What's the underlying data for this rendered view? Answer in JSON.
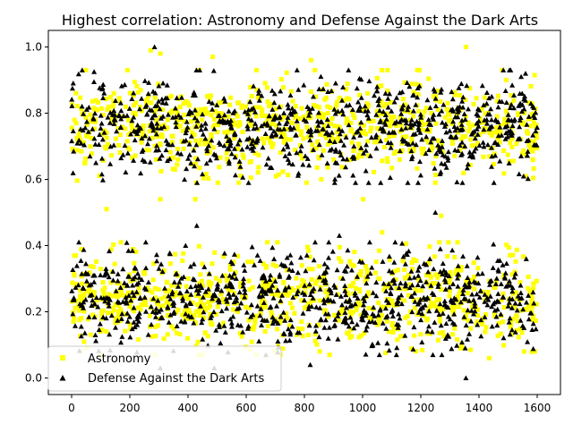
{
  "chart_data": {
    "type": "scatter",
    "title": "Highest correlation: Astronomy and Defense Against the Dark Arts",
    "xlabel": "",
    "ylabel": "",
    "xlim": [
      -80,
      1680
    ],
    "ylim": [
      -0.05,
      1.05
    ],
    "x_ticks": [
      0,
      200,
      400,
      600,
      800,
      1000,
      1200,
      1400,
      1600
    ],
    "y_ticks": [
      0.0,
      0.2,
      0.4,
      0.6,
      0.8,
      1.0
    ],
    "grid": false,
    "legend_position": "lower-left",
    "series": [
      {
        "name": "Astronomy",
        "marker": "square",
        "color": "#ffff00",
        "n_points": 1600,
        "clusters": [
          {
            "x_range": [
              0,
              1600
            ],
            "y_center": 0.76,
            "y_spread": 0.07,
            "share": 0.5
          },
          {
            "x_range": [
              0,
              1600
            ],
            "y_center": 0.24,
            "y_spread": 0.07,
            "share": 0.5
          }
        ],
        "notable_points": [
          {
            "x": 272,
            "y": 0.99
          },
          {
            "x": 305,
            "y": 0.98
          },
          {
            "x": 485,
            "y": 0.97
          },
          {
            "x": 823,
            "y": 0.96
          },
          {
            "x": 1355,
            "y": 1.0
          },
          {
            "x": 1480,
            "y": 0.93
          },
          {
            "x": 1195,
            "y": 0.93
          },
          {
            "x": 120,
            "y": 0.51
          },
          {
            "x": 1270,
            "y": 0.49
          },
          {
            "x": 425,
            "y": 0.54
          },
          {
            "x": 1002,
            "y": 0.54
          },
          {
            "x": 305,
            "y": 0.54
          },
          {
            "x": 1067,
            "y": 0.44
          },
          {
            "x": 438,
            "y": 0.07
          },
          {
            "x": 1340,
            "y": 0.09
          },
          {
            "x": 1555,
            "y": 0.08
          },
          {
            "x": 1435,
            "y": 0.06
          }
        ]
      },
      {
        "name": "Defense Against the Dark Arts",
        "marker": "triangle",
        "color": "#000000",
        "n_points": 1600,
        "clusters": [
          {
            "x_range": [
              0,
              1600
            ],
            "y_center": 0.76,
            "y_spread": 0.07,
            "share": 0.5
          },
          {
            "x_range": [
              0,
              1600
            ],
            "y_center": 0.24,
            "y_spread": 0.07,
            "share": 0.5
          }
        ],
        "notable_points": [
          {
            "x": 285,
            "y": 1.0
          },
          {
            "x": 440,
            "y": 0.93
          },
          {
            "x": 1560,
            "y": 0.92
          },
          {
            "x": 1545,
            "y": 0.91
          },
          {
            "x": 430,
            "y": 0.46
          },
          {
            "x": 1250,
            "y": 0.5
          },
          {
            "x": 920,
            "y": 0.43
          },
          {
            "x": 820,
            "y": 0.04
          },
          {
            "x": 490,
            "y": 0.03
          },
          {
            "x": 305,
            "y": 0.03
          },
          {
            "x": 1355,
            "y": 0.0
          }
        ]
      }
    ]
  }
}
